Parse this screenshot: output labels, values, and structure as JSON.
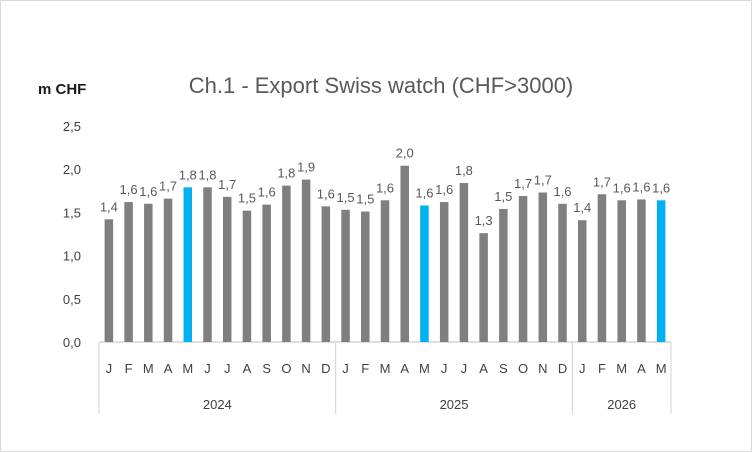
{
  "chart_data": {
    "type": "bar",
    "title": "Ch.1 - Export Swiss watch  (CHF>3000)",
    "unit_label": "m CHF",
    "ylim": [
      0,
      2.5
    ],
    "y_ticks": [
      "0,0",
      "0,5",
      "1,0",
      "1,5",
      "2,0",
      "2,5"
    ],
    "grid": false,
    "colors": {
      "default": "#7f7f7f",
      "highlight": "#00b0f0"
    },
    "groups": [
      {
        "year": "2024",
        "months": [
          "J",
          "F",
          "M",
          "A",
          "M",
          "J",
          "J",
          "A",
          "S",
          "O",
          "N",
          "D"
        ]
      },
      {
        "year": "2025",
        "months": [
          "J",
          "F",
          "M",
          "A",
          "M",
          "J",
          "J",
          "A",
          "S",
          "O",
          "N",
          "D"
        ]
      },
      {
        "year": "2026",
        "months": [
          "J",
          "F",
          "M",
          "A",
          "M"
        ]
      }
    ],
    "values": [
      1.42,
      1.62,
      1.6,
      1.66,
      1.79,
      1.79,
      1.68,
      1.52,
      1.59,
      1.81,
      1.88,
      1.57,
      1.53,
      1.51,
      1.64,
      2.04,
      1.58,
      1.62,
      1.84,
      1.26,
      1.54,
      1.69,
      1.73,
      1.6,
      1.41,
      1.71,
      1.64,
      1.65,
      1.64
    ],
    "data_labels": [
      "1,4",
      "1,6",
      "1,6",
      "1,7",
      "1,8",
      "1,8",
      "1,7",
      "1,5",
      "1,6",
      "1,8",
      "1,9",
      "1,6",
      "1,5",
      "1,5",
      "1,6",
      "2,0",
      "1,6",
      "1,6",
      "1,8",
      "1,3",
      "1,5",
      "1,7",
      "1,7",
      "1,6",
      "1,4",
      "1,7",
      "1,6",
      "1,6",
      "1,6"
    ],
    "highlighted": [
      4,
      16,
      28
    ]
  }
}
